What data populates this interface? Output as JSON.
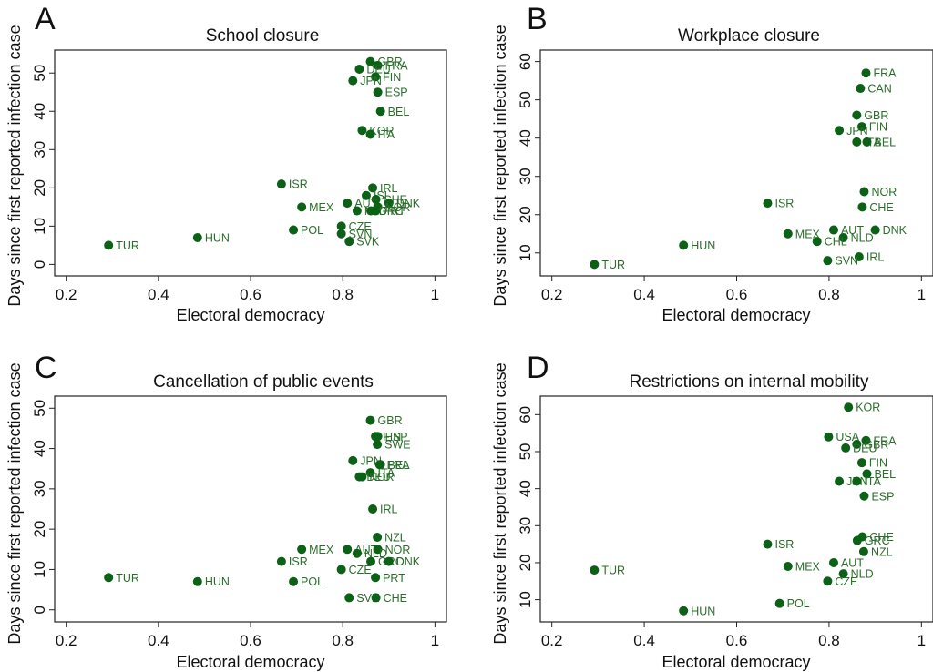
{
  "figure": {
    "point_color": "#0b6115",
    "label_color": "#2a6e2a",
    "axis_color": "#222222"
  },
  "chart_data": [
    {
      "type": "scatter",
      "panel_letter": "A",
      "title": "School closure",
      "xlabel": "Electoral democracy",
      "ylabel": "Days since first reported infection case",
      "xlim": [
        0.175,
        1.025
      ],
      "ylim": [
        -3,
        56
      ],
      "xticks": [
        0.2,
        0.4,
        0.6,
        0.8,
        1
      ],
      "xtick_labels": [
        "0.2",
        "0.4",
        "0.6",
        "0.8",
        "1"
      ],
      "yticks": [
        0,
        10,
        20,
        30,
        40,
        50
      ],
      "ytick_labels": [
        "0",
        "10",
        "20",
        "30",
        "40",
        "50"
      ],
      "grid": false,
      "points": [
        {
          "label": "GBR",
          "x": 0.86,
          "y": 53
        },
        {
          "label": "FRA",
          "x": 0.876,
          "y": 52
        },
        {
          "label": "DEU",
          "x": 0.836,
          "y": 51
        },
        {
          "label": "FIN",
          "x": 0.871,
          "y": 49
        },
        {
          "label": "JPN",
          "x": 0.822,
          "y": 48
        },
        {
          "label": "ESP",
          "x": 0.876,
          "y": 45
        },
        {
          "label": "BEL",
          "x": 0.882,
          "y": 40
        },
        {
          "label": "KOR",
          "x": 0.842,
          "y": 35
        },
        {
          "label": "ITA",
          "x": 0.86,
          "y": 34
        },
        {
          "label": "ISR",
          "x": 0.667,
          "y": 21
        },
        {
          "label": "IRL",
          "x": 0.865,
          "y": 20
        },
        {
          "label": "ISL",
          "x": 0.851,
          "y": 18
        },
        {
          "label": "CHE",
          "x": 0.872,
          "y": 17
        },
        {
          "label": "DNK",
          "x": 0.9,
          "y": 16
        },
        {
          "label": "AUT",
          "x": 0.81,
          "y": 16
        },
        {
          "label": "NOR",
          "x": 0.876,
          "y": 15
        },
        {
          "label": "MEX",
          "x": 0.711,
          "y": 15
        },
        {
          "label": "NLD",
          "x": 0.831,
          "y": 14
        },
        {
          "label": "GRC",
          "x": 0.861,
          "y": 14
        },
        {
          "label": "PRT",
          "x": 0.871,
          "y": 14
        },
        {
          "label": "CZE",
          "x": 0.797,
          "y": 10
        },
        {
          "label": "POL",
          "x": 0.693,
          "y": 9
        },
        {
          "label": "SVN",
          "x": 0.797,
          "y": 8
        },
        {
          "label": "HUN",
          "x": 0.485,
          "y": 7
        },
        {
          "label": "SVK",
          "x": 0.814,
          "y": 6
        },
        {
          "label": "TUR",
          "x": 0.292,
          "y": 5
        }
      ]
    },
    {
      "type": "scatter",
      "panel_letter": "B",
      "title": "Workplace closure",
      "xlabel": "Electoral democracy",
      "ylabel": "Days since first reported infection case",
      "xlim": [
        0.175,
        1.025
      ],
      "ylim": [
        4,
        63
      ],
      "xticks": [
        0.2,
        0.4,
        0.6,
        0.8,
        1
      ],
      "xtick_labels": [
        "0.2",
        "0.4",
        "0.6",
        "0.8",
        "1"
      ],
      "yticks": [
        10,
        20,
        30,
        40,
        50,
        60
      ],
      "ytick_labels": [
        "10",
        "20",
        "30",
        "40",
        "50",
        "60"
      ],
      "grid": false,
      "points": [
        {
          "label": "FRA",
          "x": 0.88,
          "y": 57
        },
        {
          "label": "CAN",
          "x": 0.868,
          "y": 53
        },
        {
          "label": "GBR",
          "x": 0.86,
          "y": 46
        },
        {
          "label": "FIN",
          "x": 0.871,
          "y": 43
        },
        {
          "label": "JPN",
          "x": 0.822,
          "y": 42
        },
        {
          "label": "ITA",
          "x": 0.86,
          "y": 39
        },
        {
          "label": "BEL",
          "x": 0.882,
          "y": 39
        },
        {
          "label": "NOR",
          "x": 0.876,
          "y": 26
        },
        {
          "label": "ISR",
          "x": 0.667,
          "y": 23
        },
        {
          "label": "CHE",
          "x": 0.872,
          "y": 22
        },
        {
          "label": "AUT",
          "x": 0.81,
          "y": 16
        },
        {
          "label": "DNK",
          "x": 0.9,
          "y": 16
        },
        {
          "label": "MEX",
          "x": 0.711,
          "y": 15
        },
        {
          "label": "NLD",
          "x": 0.831,
          "y": 14
        },
        {
          "label": "CHL",
          "x": 0.774,
          "y": 13
        },
        {
          "label": "HUN",
          "x": 0.485,
          "y": 12
        },
        {
          "label": "IRL",
          "x": 0.865,
          "y": 9
        },
        {
          "label": "SVN",
          "x": 0.797,
          "y": 8
        },
        {
          "label": "TUR",
          "x": 0.292,
          "y": 7
        }
      ]
    },
    {
      "type": "scatter",
      "panel_letter": "C",
      "title": "Cancellation of public events",
      "xlabel": "Electoral democracy",
      "ylabel": "Days since first reported infection case",
      "xlim": [
        0.175,
        1.025
      ],
      "ylim": [
        -3,
        53
      ],
      "xticks": [
        0.2,
        0.4,
        0.6,
        0.8,
        1
      ],
      "xtick_labels": [
        "0.2",
        "0.4",
        "0.6",
        "0.8",
        "1"
      ],
      "yticks": [
        0,
        10,
        20,
        30,
        40,
        50
      ],
      "ytick_labels": [
        "0",
        "10",
        "20",
        "30",
        "40",
        "50"
      ],
      "grid": false,
      "points": [
        {
          "label": "GBR",
          "x": 0.86,
          "y": 47
        },
        {
          "label": "FIN",
          "x": 0.871,
          "y": 43
        },
        {
          "label": "ESP",
          "x": 0.876,
          "y": 43
        },
        {
          "label": "SWE",
          "x": 0.875,
          "y": 41
        },
        {
          "label": "JPN",
          "x": 0.822,
          "y": 37
        },
        {
          "label": "BEL",
          "x": 0.882,
          "y": 36
        },
        {
          "label": "FRA",
          "x": 0.88,
          "y": 36
        },
        {
          "label": "ITA",
          "x": 0.86,
          "y": 34
        },
        {
          "label": "DEU",
          "x": 0.836,
          "y": 33
        },
        {
          "label": "KOR",
          "x": 0.842,
          "y": 33
        },
        {
          "label": "IRL",
          "x": 0.865,
          "y": 25
        },
        {
          "label": "NZL",
          "x": 0.875,
          "y": 18
        },
        {
          "label": "MEX",
          "x": 0.711,
          "y": 15
        },
        {
          "label": "AUT",
          "x": 0.81,
          "y": 15
        },
        {
          "label": "NOR",
          "x": 0.876,
          "y": 15
        },
        {
          "label": "NLD",
          "x": 0.831,
          "y": 14
        },
        {
          "label": "ISR",
          "x": 0.667,
          "y": 12
        },
        {
          "label": "GRC",
          "x": 0.861,
          "y": 12
        },
        {
          "label": "DNK",
          "x": 0.9,
          "y": 12
        },
        {
          "label": "CZE",
          "x": 0.797,
          "y": 10
        },
        {
          "label": "TUR",
          "x": 0.292,
          "y": 8
        },
        {
          "label": "PRT",
          "x": 0.871,
          "y": 8
        },
        {
          "label": "HUN",
          "x": 0.485,
          "y": 7
        },
        {
          "label": "POL",
          "x": 0.693,
          "y": 7
        },
        {
          "label": "SVN",
          "x": 0.814,
          "y": 3
        },
        {
          "label": "CHE",
          "x": 0.872,
          "y": 3
        }
      ]
    },
    {
      "type": "scatter",
      "panel_letter": "D",
      "title": "Restrictions on internal mobility",
      "xlabel": "Electoral democracy",
      "ylabel": "Days since first reported infection case",
      "xlim": [
        0.175,
        1.025
      ],
      "ylim": [
        4,
        65
      ],
      "xticks": [
        0.2,
        0.4,
        0.6,
        0.8,
        1
      ],
      "xtick_labels": [
        "0.2",
        "0.4",
        "0.6",
        "0.8",
        "1"
      ],
      "yticks": [
        10,
        20,
        30,
        40,
        50,
        60
      ],
      "ytick_labels": [
        "10",
        "20",
        "30",
        "40",
        "50",
        "60"
      ],
      "grid": false,
      "points": [
        {
          "label": "KOR",
          "x": 0.842,
          "y": 62
        },
        {
          "label": "USA",
          "x": 0.799,
          "y": 54
        },
        {
          "label": "FRA",
          "x": 0.88,
          "y": 53
        },
        {
          "label": "GBR",
          "x": 0.86,
          "y": 52
        },
        {
          "label": "DEU",
          "x": 0.836,
          "y": 51
        },
        {
          "label": "FIN",
          "x": 0.871,
          "y": 47
        },
        {
          "label": "BEL",
          "x": 0.882,
          "y": 44
        },
        {
          "label": "JPN",
          "x": 0.822,
          "y": 42
        },
        {
          "label": "ITA",
          "x": 0.86,
          "y": 42
        },
        {
          "label": "ESP",
          "x": 0.876,
          "y": 38
        },
        {
          "label": "CHE",
          "x": 0.872,
          "y": 27
        },
        {
          "label": "GRC",
          "x": 0.861,
          "y": 26
        },
        {
          "label": "ISR",
          "x": 0.667,
          "y": 25
        },
        {
          "label": "NZL",
          "x": 0.875,
          "y": 23
        },
        {
          "label": "AUT",
          "x": 0.81,
          "y": 20
        },
        {
          "label": "MEX",
          "x": 0.711,
          "y": 19
        },
        {
          "label": "TUR",
          "x": 0.292,
          "y": 18
        },
        {
          "label": "NLD",
          "x": 0.831,
          "y": 17
        },
        {
          "label": "CZE",
          "x": 0.797,
          "y": 15
        },
        {
          "label": "POL",
          "x": 0.693,
          "y": 9
        },
        {
          "label": "HUN",
          "x": 0.485,
          "y": 7
        }
      ]
    }
  ]
}
